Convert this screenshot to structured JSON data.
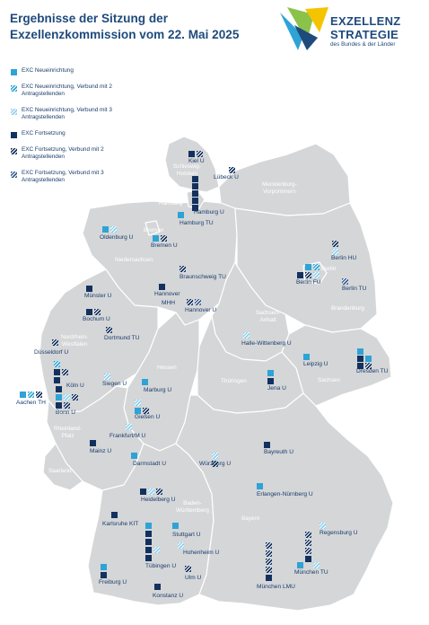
{
  "title": {
    "line1": "Ergebnisse der Sitzung der",
    "line2": "Exzellenzkommission vom 22. Mai 2025"
  },
  "logo": {
    "line1": "EXZELLENZ",
    "line2": "STRATEGIE",
    "subtitle": "des Bundes & der Länder"
  },
  "colors": {
    "new": "#2ea3d6",
    "new_light": "#8fd0ec",
    "continue": "#13315e",
    "continue_mid": "#3a5f93",
    "land": "#d5d6d8",
    "border": "#ffffff"
  },
  "legend": [
    {
      "label": "EXC Neueinrichtung",
      "pattern": "new1"
    },
    {
      "label": "EXC Neueinrichtung, Verbund mit 2 Antragstellenden",
      "pattern": "new2"
    },
    {
      "label": "EXC Neueinrichtung, Verbund mit 3 Antragstellenden",
      "pattern": "new3"
    },
    {
      "label": "EXC Fortsetzung",
      "pattern": "con1"
    },
    {
      "label": "EXC Fortsetzung, Verbund mit 2 Antragstellenden",
      "pattern": "con2"
    },
    {
      "label": "EXC Fortsetzung, Verbund mit 3 Antragstellenden",
      "pattern": "con3"
    }
  ],
  "regions": {
    "sh": "Schleswig-\nHolstein",
    "mv": "Mecklenburg-\nVorpommern",
    "hh": "Hamburg",
    "hb": "Bremen",
    "ni": "Niedersachsen",
    "be": "Berlin",
    "bb": "Brandenburg",
    "st": "Sachsen-\nAnhalt",
    "nw": "Nordrhein-\nWestfalen",
    "he": "Hessen",
    "th": "Thüringen",
    "sn": "Sachsen",
    "rp": "Rheinland-\nPfalz",
    "sl": "Saarland",
    "bw": "Baden-\nWürttemberg",
    "by": "Bayern"
  },
  "cities": {
    "kiel": "Kiel U",
    "luebeck": "Lübeck U",
    "hamburg_u": "Hamburg U",
    "hamburg_tu": "Hamburg TU",
    "oldenburg": "Oldenburg U",
    "bremen": "Bremen U",
    "berlin_hu": "Berlin HU",
    "berlin_fu": "Berlin FU",
    "berlin_tu": "Berlin TU",
    "braunschweig": "Braunschweig TU",
    "muenster": "Münster U",
    "hannover": "Hannover",
    "mhh": "MHH",
    "hannover_u": "Hannover U",
    "bochum": "Bochum U",
    "dortmund": "Dortmund TU",
    "halle": "Halle-Wittenberg U",
    "duesseldorf": "Düsseldorf U",
    "leipzig": "Leipzig U",
    "dresden": "Dresden TU",
    "siegen": "Siegen U",
    "koeln": "Köln U",
    "aachen": "Aachen TH",
    "bonn": "Bonn U",
    "marburg": "Marburg U",
    "jena": "Jena U",
    "giessen": "Gießen U",
    "frankfurt": "Frankfurt/M U",
    "mainz": "Mainz U",
    "bayreuth": "Bayreuth U",
    "darmstadt": "Darmstadt U",
    "wuerzburg": "Würzburg U",
    "erlangen": "Erlangen-Nürnberg U",
    "heidelberg": "Heidelberg U",
    "karlsruhe": "Karlsruhe KIT",
    "stuttgart": "Stuttgart U",
    "regensburg": "Regensburg U",
    "hohenheim": "Hohenheim U",
    "tuebingen": "Tübingen U",
    "muenchen_tu": "München TU",
    "freiburg": "Freiburg U",
    "ulm": "Ulm U",
    "muenchen_lmu": "München LMU",
    "konstanz": "Konstanz U"
  }
}
